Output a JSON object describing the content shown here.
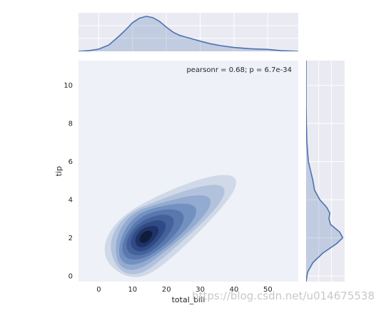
{
  "chart_data": {
    "type": "jointplot-kde",
    "xlabel": "total_bill",
    "ylabel": "tip",
    "annotation": "pearsonr = 0.68; p = 6.7e-34",
    "xlim": [
      -6,
      59
    ],
    "ylim": [
      -0.3,
      11.3
    ],
    "xticks": [
      "0",
      "10",
      "20",
      "30",
      "40",
      "50"
    ],
    "yticks": [
      "0",
      "2",
      "4",
      "6",
      "8",
      "10"
    ],
    "joint_kde": {
      "mean": [
        13.8,
        2.05
      ],
      "sd": [
        3.6,
        0.55
      ],
      "rotation_deg": 18,
      "skew_x": 4.8,
      "levels": 9,
      "colors": [
        "#d0d9e8",
        "#b2c2dc",
        "#93abd0",
        "#7391c0",
        "#5a78ad",
        "#43619a",
        "#2f4a84",
        "#1e3367",
        "#111d3d"
      ]
    },
    "marginal_x_density": [
      [
        -6,
        0.0
      ],
      [
        -3,
        0.002
      ],
      [
        0,
        0.007
      ],
      [
        3,
        0.02
      ],
      [
        6,
        0.048
      ],
      [
        8,
        0.068
      ],
      [
        10,
        0.09
      ],
      [
        12,
        0.104
      ],
      [
        14,
        0.11
      ],
      [
        16,
        0.106
      ],
      [
        18,
        0.094
      ],
      [
        20,
        0.076
      ],
      [
        22,
        0.06
      ],
      [
        24,
        0.05
      ],
      [
        26,
        0.044
      ],
      [
        28,
        0.038
      ],
      [
        30,
        0.032
      ],
      [
        33,
        0.024
      ],
      [
        36,
        0.018
      ],
      [
        40,
        0.012
      ],
      [
        45,
        0.008
      ],
      [
        50,
        0.006
      ],
      [
        54,
        0.002
      ],
      [
        59,
        0.0
      ]
    ],
    "marginal_y_density": [
      [
        -0.3,
        0.0
      ],
      [
        0.2,
        0.02
      ],
      [
        0.7,
        0.09
      ],
      [
        1.2,
        0.22
      ],
      [
        1.7,
        0.4
      ],
      [
        2.0,
        0.48
      ],
      [
        2.3,
        0.44
      ],
      [
        2.7,
        0.32
      ],
      [
        3.0,
        0.3
      ],
      [
        3.3,
        0.31
      ],
      [
        3.6,
        0.27
      ],
      [
        4.0,
        0.18
      ],
      [
        4.5,
        0.11
      ],
      [
        5.0,
        0.09
      ],
      [
        5.5,
        0.06
      ],
      [
        6.0,
        0.03
      ],
      [
        7.0,
        0.01
      ],
      [
        8.0,
        0.004
      ],
      [
        9.0,
        0.0
      ],
      [
        11.3,
        0.0
      ]
    ],
    "style": {
      "line": "#4c72b0",
      "fill": "#4c72b0",
      "panel_bg": "#eaeaf2",
      "joint_bg": "#eef1f7"
    }
  },
  "watermark": "https://blog.csdn.net/u014675538"
}
